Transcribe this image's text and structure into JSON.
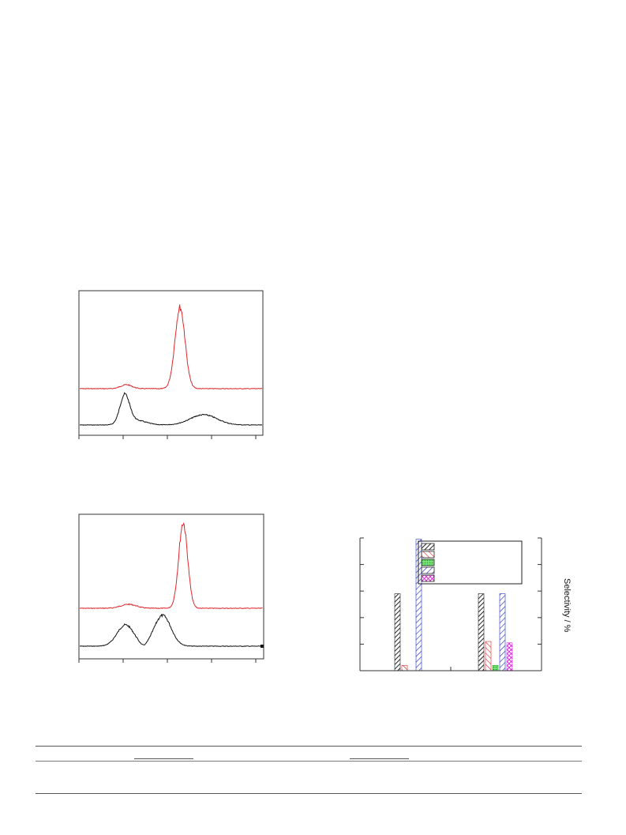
{
  "chart_data": [
    {
      "type": "line",
      "series": [
        {
          "name": "",
          "color": "#e0262b"
        },
        {
          "name": "",
          "color": "#111111"
        }
      ]
    },
    {
      "type": "line",
      "series": [
        {
          "name": "",
          "color": "#e0262b"
        },
        {
          "name": "",
          "color": "#111111"
        }
      ]
    },
    {
      "type": "bar",
      "ylabel": "Selectivity / %",
      "categories": [
        "",
        ""
      ],
      "ylim": [
        0,
        100
      ],
      "series": [
        {
          "name": "",
          "pattern": "black-hatch",
          "values": [
            58,
            58
          ]
        },
        {
          "name": "",
          "pattern": "red-hatch",
          "values": [
            4,
            22
          ]
        },
        {
          "name": "",
          "pattern": "green-dots",
          "values": [
            0,
            4
          ]
        },
        {
          "name": "",
          "pattern": "blue-hatch",
          "values": [
            99,
            58
          ]
        },
        {
          "name": "",
          "pattern": "magenta-cross",
          "values": [
            0,
            21
          ]
        }
      ]
    }
  ]
}
